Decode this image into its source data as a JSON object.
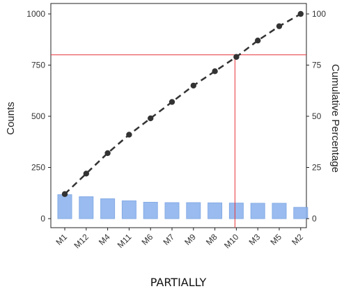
{
  "chart_data": {
    "type": "bar",
    "categories": [
      "M1",
      "M12",
      "M4",
      "M11",
      "M6",
      "M7",
      "M9",
      "M8",
      "M10",
      "M3",
      "M5",
      "M2"
    ],
    "series": [
      {
        "type": "bar",
        "axis": "left",
        "values": [
          117,
          107,
          97,
          87,
          80,
          78,
          78,
          77,
          76,
          75,
          75,
          55
        ]
      },
      {
        "type": "line",
        "axis": "right",
        "values": [
          12,
          22,
          32,
          41,
          49,
          57,
          65,
          72,
          79,
          87,
          94,
          100
        ]
      }
    ],
    "xlabel": "PARTIALLY",
    "ylabel": "Counts",
    "y2label": "Cumulative Percentage",
    "ylim": [
      0,
      1000
    ],
    "y2lim": [
      0,
      100
    ],
    "yticks": [
      0,
      250,
      500,
      750,
      1000
    ],
    "y2ticks": [
      0,
      25,
      50,
      75,
      100
    ],
    "threshold": {
      "y2": 80,
      "category": "M10"
    },
    "colors": {
      "bar": "#8fb4ee",
      "bar_edge": "#7aa3e3",
      "line": "#333333",
      "threshold": "#e8343a"
    },
    "grid": false
  }
}
